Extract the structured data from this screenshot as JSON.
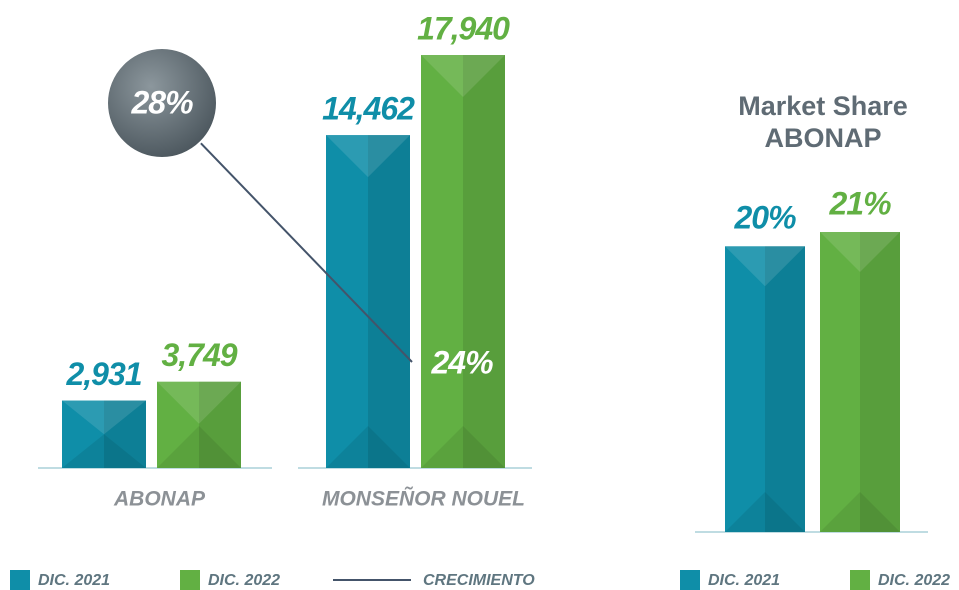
{
  "chart_data": [
    {
      "type": "bar",
      "categories": [
        "ABONAP",
        "MONSEÑOR NOUEL"
      ],
      "series": [
        {
          "name": "DIC. 2021",
          "color": "#0f8ea8",
          "values": [
            2931,
            14462
          ],
          "value_labels": [
            "2,931",
            "14,462"
          ]
        },
        {
          "name": "DIC. 2022",
          "color": "#62b043",
          "values": [
            3749,
            17940
          ],
          "value_labels": [
            "3,749",
            "17,940"
          ]
        }
      ],
      "growth": {
        "name": "CRECIMIENTO",
        "color": "#44546a",
        "values": [
          28,
          24
        ],
        "value_labels": [
          "28%",
          "24%"
        ]
      }
    },
    {
      "type": "bar",
      "title": "Market Share ABONAP",
      "categories": [
        null
      ],
      "series": [
        {
          "name": "DIC. 2021",
          "color": "#0f8ea8",
          "values": [
            20
          ],
          "value_labels": [
            "20%"
          ]
        },
        {
          "name": "DIC. 2022",
          "color": "#62b043",
          "values": [
            21
          ],
          "value_labels": [
            "21%"
          ]
        }
      ]
    }
  ]
}
